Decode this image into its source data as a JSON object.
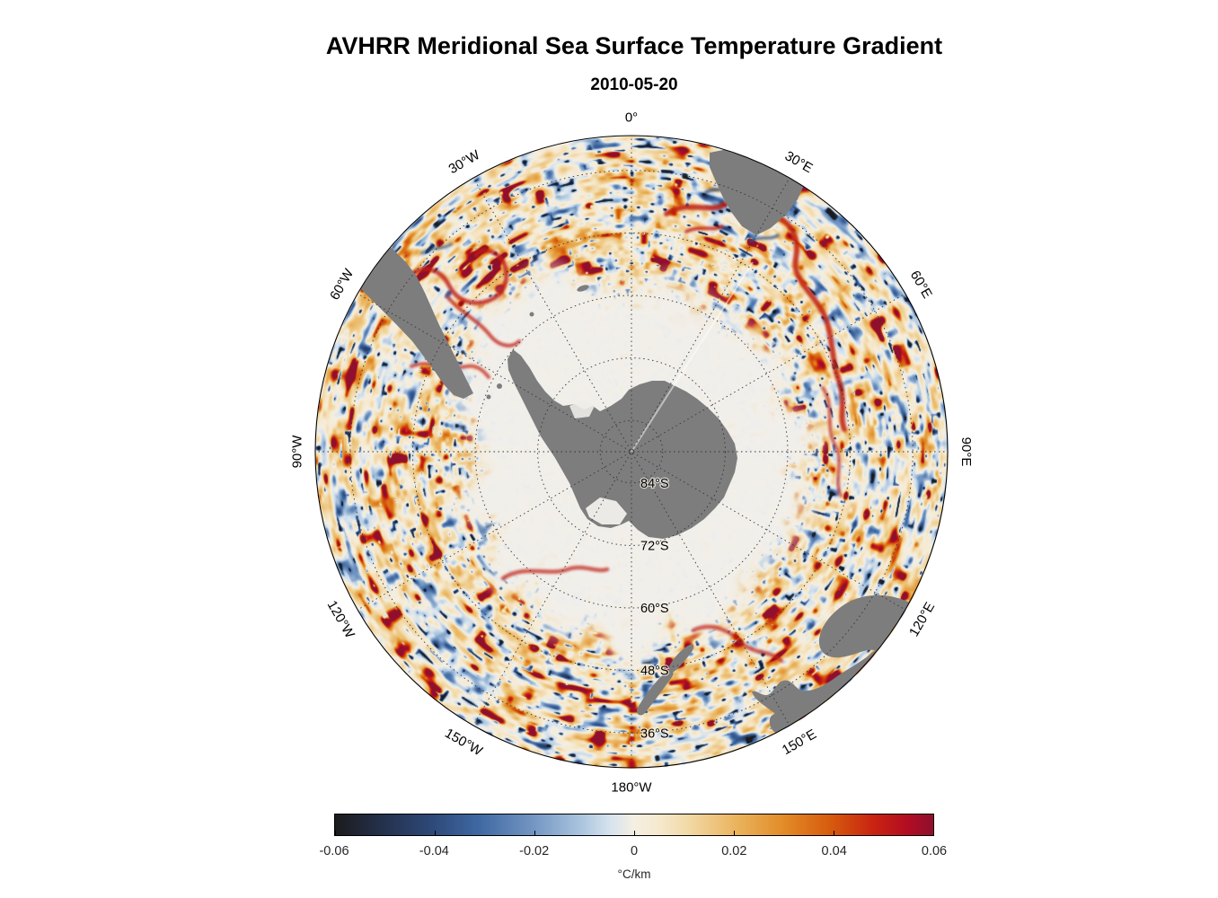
{
  "chart_data": {
    "type": "heatmap",
    "projection": "south polar stereographic",
    "title": "AVHRR Meridional Sea Surface Temperature Gradient",
    "subtitle": "2010-05-20",
    "meridian_labels": [
      {
        "label": "0°",
        "lon": 0
      },
      {
        "label": "30°E",
        "lon": 30
      },
      {
        "label": "60°E",
        "lon": 60
      },
      {
        "label": "90°E",
        "lon": 90
      },
      {
        "label": "120°E",
        "lon": 120
      },
      {
        "label": "150°E",
        "lon": 150
      },
      {
        "label": "180°W",
        "lon": 180
      },
      {
        "label": "150°W",
        "lon": -150
      },
      {
        "label": "120°W",
        "lon": -120
      },
      {
        "label": "90°W",
        "lon": -90
      },
      {
        "label": "60°W",
        "lon": -60
      },
      {
        "label": "30°W",
        "lon": -30
      }
    ],
    "parallel_labels": [
      {
        "label": "84°S",
        "lat": -84
      },
      {
        "label": "72°S",
        "lat": -72
      },
      {
        "label": "60°S",
        "lat": -60
      },
      {
        "label": "48°S",
        "lat": -48
      },
      {
        "label": "36°S",
        "lat": -36
      }
    ],
    "colorbar": {
      "min": -0.06,
      "max": 0.06,
      "ticks": [
        "-0.06",
        "-0.04",
        "-0.02",
        "0",
        "0.02",
        "0.04",
        "0.06"
      ],
      "unit": "°C/km",
      "stops": [
        [
          0.0,
          "#1b1b1b"
        ],
        [
          0.07,
          "#232e47"
        ],
        [
          0.16,
          "#2d4877"
        ],
        [
          0.24,
          "#3f68a2"
        ],
        [
          0.33,
          "#7295c2"
        ],
        [
          0.41,
          "#a9c4de"
        ],
        [
          0.46,
          "#d7e3ee"
        ],
        [
          0.5,
          "#f4efe2"
        ],
        [
          0.54,
          "#f6e9cf"
        ],
        [
          0.59,
          "#f2d9a7"
        ],
        [
          0.67,
          "#eab45e"
        ],
        [
          0.75,
          "#e28b28"
        ],
        [
          0.83,
          "#d65a0d"
        ],
        [
          0.9,
          "#c92312"
        ],
        [
          0.955,
          "#b40d21"
        ],
        [
          1.0,
          "#8e0f2e"
        ]
      ]
    },
    "land_color": "#7d7d7d",
    "ice_color": "#f1efec",
    "grid_color": "#333333"
  }
}
